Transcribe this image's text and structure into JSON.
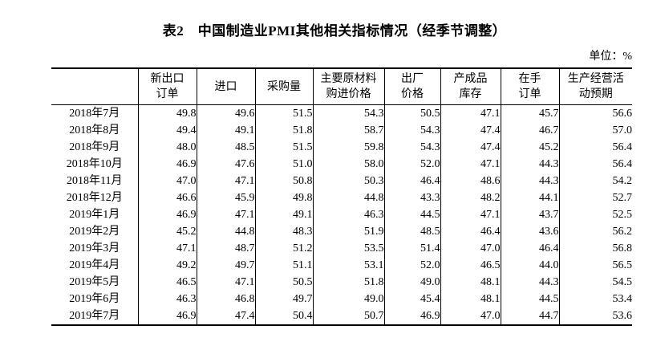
{
  "page": {
    "title": "表2　中国制造业PMI其他相关指标情况（经季节调整）",
    "unit_label": "单位：%"
  },
  "table": {
    "columns": [
      {
        "label": ""
      },
      {
        "label": "新出口\n订单"
      },
      {
        "label": "进口"
      },
      {
        "label": "采购量"
      },
      {
        "label": "主要原材料\n购进价格"
      },
      {
        "label": "出厂\n价格"
      },
      {
        "label": "产成品\n库存"
      },
      {
        "label": "在手\n订单"
      },
      {
        "label": "生产经营活\n动预期"
      }
    ],
    "rows": [
      {
        "month": "2018年7月",
        "values": [
          "49.8",
          "49.6",
          "51.5",
          "54.3",
          "50.5",
          "47.1",
          "45.7",
          "56.6"
        ]
      },
      {
        "month": "2018年8月",
        "values": [
          "49.4",
          "49.1",
          "51.8",
          "58.7",
          "54.3",
          "47.4",
          "46.7",
          "57.0"
        ]
      },
      {
        "month": "2018年9月",
        "values": [
          "48.0",
          "48.5",
          "51.5",
          "59.8",
          "54.3",
          "47.4",
          "45.2",
          "56.4"
        ]
      },
      {
        "month": "2018年10月",
        "values": [
          "46.9",
          "47.6",
          "51.0",
          "58.0",
          "52.0",
          "47.1",
          "44.3",
          "56.4"
        ]
      },
      {
        "month": "2018年11月",
        "values": [
          "47.0",
          "47.1",
          "50.8",
          "50.3",
          "46.4",
          "48.6",
          "44.3",
          "54.2"
        ]
      },
      {
        "month": "2018年12月",
        "values": [
          "46.6",
          "45.9",
          "49.8",
          "44.8",
          "43.3",
          "48.2",
          "44.1",
          "52.7"
        ]
      },
      {
        "month": "2019年1月",
        "values": [
          "46.9",
          "47.1",
          "49.1",
          "46.3",
          "44.5",
          "47.1",
          "43.7",
          "52.5"
        ]
      },
      {
        "month": "2019年2月",
        "values": [
          "45.2",
          "44.8",
          "48.3",
          "51.9",
          "48.5",
          "46.4",
          "43.6",
          "56.2"
        ]
      },
      {
        "month": "2019年3月",
        "values": [
          "47.1",
          "48.7",
          "51.2",
          "53.5",
          "51.4",
          "47.0",
          "46.4",
          "56.8"
        ]
      },
      {
        "month": "2019年4月",
        "values": [
          "49.2",
          "49.7",
          "51.1",
          "53.1",
          "52.0",
          "46.5",
          "44.0",
          "56.5"
        ]
      },
      {
        "month": "2019年5月",
        "values": [
          "46.5",
          "47.1",
          "50.5",
          "51.8",
          "49.0",
          "48.1",
          "44.3",
          "54.5"
        ]
      },
      {
        "month": "2019年6月",
        "values": [
          "46.3",
          "46.8",
          "49.7",
          "49.0",
          "45.4",
          "48.1",
          "44.5",
          "53.4"
        ]
      },
      {
        "month": "2019年7月",
        "values": [
          "46.9",
          "47.4",
          "50.4",
          "50.7",
          "46.9",
          "47.0",
          "44.7",
          "53.6"
        ]
      }
    ]
  },
  "colors": {
    "text": "#000000",
    "border": "#000000",
    "background": "#ffffff"
  }
}
